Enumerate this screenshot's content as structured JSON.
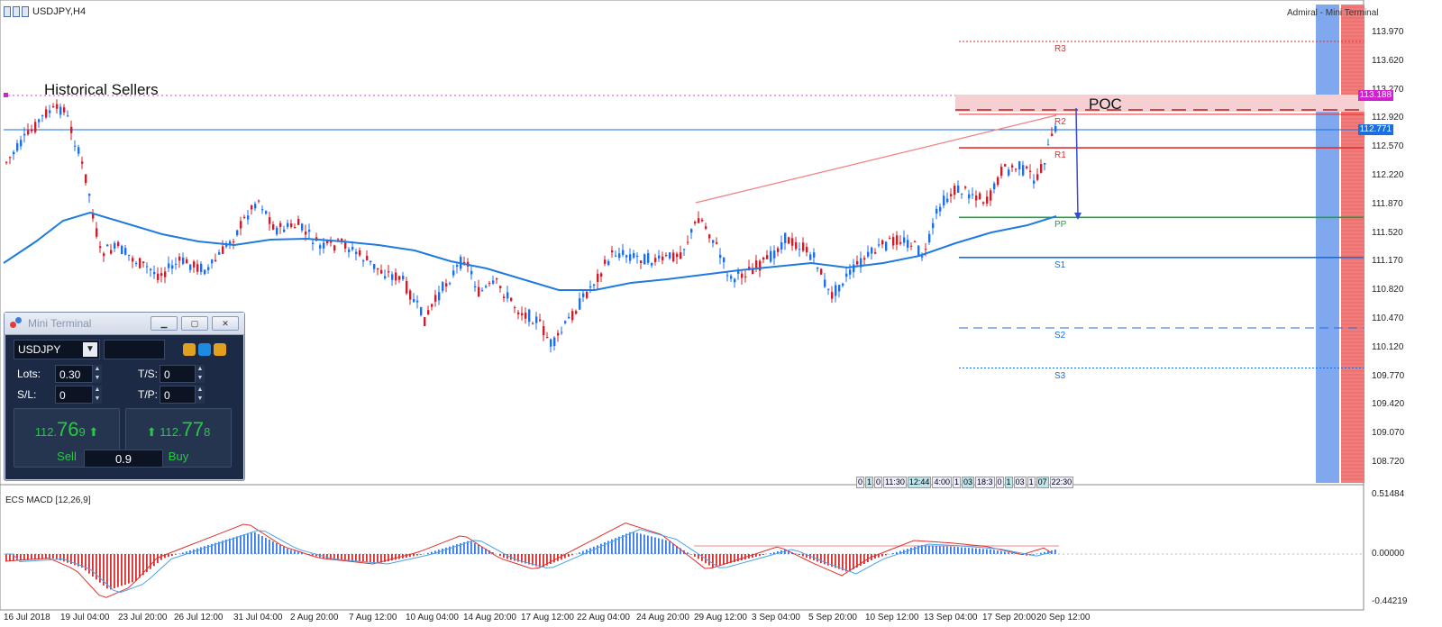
{
  "window": {
    "title": "USDJPY,H4",
    "broker": "Admiral - Mini Terminal"
  },
  "price_axis": [
    "113.970",
    "113.620",
    "113.270",
    "112.920",
    "112.570",
    "112.220",
    "111.870",
    "111.520",
    "111.170",
    "110.820",
    "110.470",
    "110.120",
    "109.770",
    "109.420",
    "109.070",
    "108.720"
  ],
  "price_tags": {
    "poc": "113.188",
    "current": "112.771"
  },
  "annotations": {
    "historical_sellers": "Historical Sellers",
    "poc": "POC"
  },
  "pivot_levels": [
    {
      "label": "R3",
      "price": 113.86,
      "color": "#e03030"
    },
    {
      "label": "R2",
      "price": 112.97,
      "color": "#e03030"
    },
    {
      "label": "R1",
      "price": 112.56,
      "color": "#e03030"
    },
    {
      "label": "PP",
      "price": 111.71,
      "color": "#20a040"
    },
    {
      "label": "S1",
      "price": 111.22,
      "color": "#1a6ee0"
    },
    {
      "label": "S2",
      "price": 110.36,
      "color": "#1a6ee0"
    },
    {
      "label": "S3",
      "price": 109.87,
      "color": "#1a6ee0"
    }
  ],
  "session_strip": [
    "0",
    "1",
    "0",
    "11:30",
    "12:44",
    "4:00",
    "1",
    "03",
    "18:3",
    "0",
    "1",
    "03",
    "1",
    "07",
    "22:30"
  ],
  "macd": {
    "title": "ECS MACD [12,26,9]",
    "axis": [
      "0.51484",
      "0.00000",
      "-0.44219"
    ]
  },
  "time_axis": [
    "16 Jul 2018",
    "19 Jul 04:00",
    "23 Jul 20:00",
    "26 Jul 12:00",
    "31 Jul 04:00",
    "2 Aug 20:00",
    "7 Aug 12:00",
    "10 Aug 04:00",
    "14 Aug 20:00",
    "17 Aug 12:00",
    "22 Aug 04:00",
    "24 Aug 20:00",
    "29 Aug 12:00",
    "3 Sep 04:00",
    "5 Sep 20:00",
    "10 Sep 12:00",
    "13 Sep 04:00",
    "17 Sep 20:00",
    "20 Sep 12:00"
  ],
  "mini_terminal": {
    "title": "Mini Terminal",
    "symbol": "USDJPY",
    "lots_label": "Lots:",
    "lots": "0.30",
    "sl_label": "S/L:",
    "sl": "0",
    "ts_label": "T/S:",
    "ts": "0",
    "tp_label": "T/P:",
    "tp": "0",
    "sell": {
      "prefix": "112.",
      "big": "76",
      "suffix": "9",
      "label": "Sell"
    },
    "buy": {
      "prefix": "112.",
      "big": "77",
      "suffix": "8",
      "label": "Buy"
    },
    "spread": "0.9"
  },
  "colors": {
    "bull": "#1e6fe0",
    "bear": "#c8202a",
    "ma": "#1f7be0",
    "bg": "#ffffff"
  }
}
